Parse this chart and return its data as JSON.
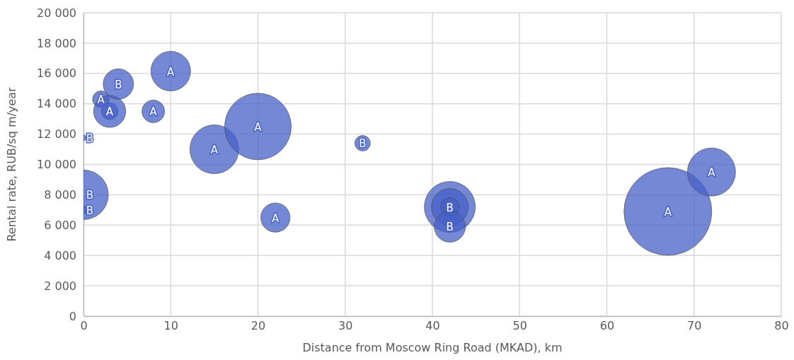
{
  "chart_data": {
    "type": "bubble",
    "xlabel": "Distance from Moscow Ring Road (MKAD), km",
    "ylabel": "Rental rate, RUB/sq m/year",
    "x": [
      0,
      0,
      0,
      2,
      3,
      3,
      4,
      8,
      10,
      15,
      20,
      22,
      32,
      42,
      42,
      42,
      42,
      67,
      72
    ],
    "values": [
      11750,
      8000,
      7000,
      14300,
      13500,
      13500,
      15300,
      13500,
      16150,
      11000,
      12500,
      6500,
      11400,
      7200,
      7200,
      7200,
      5900,
      6900,
      9500
    ],
    "sizes": [
      0.004,
      0.32,
      0.0065,
      0.036,
      0.037,
      0.134,
      0.12,
      0.067,
      0.204,
      0.31,
      0.575,
      0.111,
      0.031,
      0.337,
      0.176,
      0.044,
      0.126,
      1,
      0.3
    ],
    "value_labels": [
      "B",
      "B",
      "B",
      "A",
      null,
      "A",
      "B",
      "A",
      "A",
      "A",
      "A",
      "A",
      "B",
      null,
      null,
      "B",
      "B",
      "A",
      "A"
    ],
    "color": "#4560c8",
    "xlim": [
      0,
      80
    ],
    "xticks": [
      0,
      10,
      20,
      30,
      40,
      50,
      60,
      70,
      80
    ],
    "ylim": [
      0,
      20000
    ],
    "yticks": [
      0,
      {
        "value": 2000,
        "label": "2 000"
      },
      {
        "value": 4000,
        "label": "4 000"
      },
      {
        "value": 6000,
        "label": "6 000"
      },
      {
        "value": 8000,
        "label": "8 000"
      },
      {
        "value": 10000,
        "label": "10 000"
      },
      {
        "value": 12000,
        "label": "12 000"
      },
      {
        "value": 14000,
        "label": "14 000"
      },
      {
        "value": 16000,
        "label": "16 000"
      },
      {
        "value": 18000,
        "label": "18 000"
      },
      {
        "value": 20000,
        "label": "20 000"
      }
    ],
    "grid": true
  }
}
